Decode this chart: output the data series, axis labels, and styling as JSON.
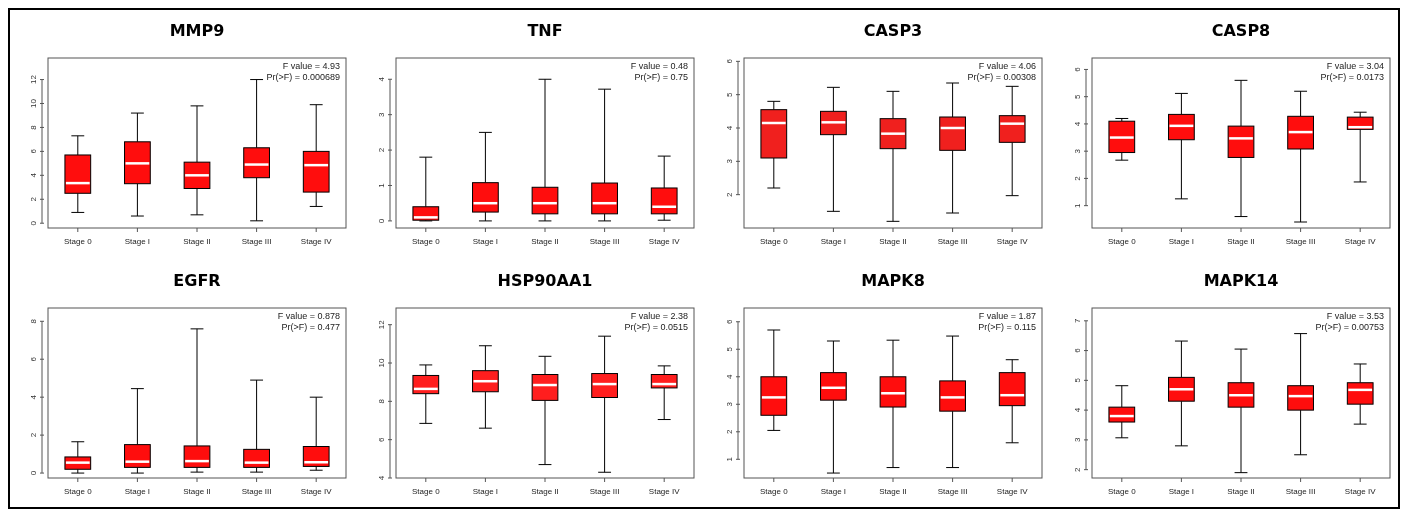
{
  "chart_data": [
    {
      "type": "box",
      "title": "MMP9",
      "categories": [
        "Stage 0",
        "Stage I",
        "Stage II",
        "Stage III",
        "Stage IV"
      ],
      "color": "#ff0d0d",
      "ylim": [
        -0.4,
        13.8
      ],
      "yticks": [
        0,
        2,
        4,
        6,
        8,
        10,
        12
      ],
      "annotations": [
        "F value = 4.93",
        "Pr(>F) = 0.000689"
      ],
      "boxes": [
        {
          "low": 0.9,
          "q1": 2.5,
          "median": 3.35,
          "q3": 5.7,
          "high": 7.3
        },
        {
          "low": 0.6,
          "q1": 3.3,
          "median": 5.0,
          "q3": 6.8,
          "high": 9.2
        },
        {
          "low": 0.7,
          "q1": 2.9,
          "median": 4.0,
          "q3": 5.1,
          "high": 9.8
        },
        {
          "low": 0.2,
          "q1": 3.8,
          "median": 4.9,
          "q3": 6.3,
          "high": 12.0
        },
        {
          "low": 1.4,
          "q1": 2.6,
          "median": 4.85,
          "q3": 6.0,
          "high": 9.9
        }
      ]
    },
    {
      "type": "box",
      "title": "TNF",
      "categories": [
        "Stage 0",
        "Stage I",
        "Stage II",
        "Stage III",
        "Stage IV"
      ],
      "color": "#ff0d0d",
      "ylim": [
        -0.2,
        4.6
      ],
      "yticks": [
        0,
        1,
        2,
        3,
        4
      ],
      "annotations": [
        "F value = 0.48",
        "Pr(>F) = 0.75"
      ],
      "boxes": [
        {
          "low": 0,
          "q1": 0.02,
          "median": 0.1,
          "q3": 0.4,
          "high": 1.8
        },
        {
          "low": 0,
          "q1": 0.25,
          "median": 0.5,
          "q3": 1.08,
          "high": 2.5
        },
        {
          "low": 0,
          "q1": 0.2,
          "median": 0.5,
          "q3": 0.95,
          "high": 4.0
        },
        {
          "low": 0,
          "q1": 0.2,
          "median": 0.5,
          "q3": 1.07,
          "high": 3.72
        },
        {
          "low": 0.02,
          "q1": 0.2,
          "median": 0.4,
          "q3": 0.93,
          "high": 1.83
        }
      ]
    },
    {
      "type": "box",
      "title": "CASP3",
      "categories": [
        "Stage 0",
        "Stage I",
        "Stage II",
        "Stage III",
        "Stage IV"
      ],
      "color": "#f0201e",
      "ylim": [
        1.0,
        6.1
      ],
      "yticks": [
        2,
        3,
        4,
        5,
        6
      ],
      "annotations": [
        "F value = 4.06",
        "Pr(>F) = 0.00308"
      ],
      "boxes": [
        {
          "low": 2.2,
          "q1": 3.1,
          "median": 4.15,
          "q3": 4.55,
          "high": 4.8
        },
        {
          "low": 1.5,
          "q1": 3.8,
          "median": 4.17,
          "q3": 4.5,
          "high": 5.22
        },
        {
          "low": 1.2,
          "q1": 3.38,
          "median": 3.83,
          "q3": 4.28,
          "high": 5.1
        },
        {
          "low": 1.45,
          "q1": 3.33,
          "median": 4.0,
          "q3": 4.33,
          "high": 5.35
        },
        {
          "low": 1.97,
          "q1": 3.57,
          "median": 4.13,
          "q3": 4.37,
          "high": 5.25
        }
      ]
    },
    {
      "type": "box",
      "title": "CASP8",
      "categories": [
        "Stage 0",
        "Stage I",
        "Stage II",
        "Stage III",
        "Stage IV"
      ],
      "color": "#ff0d0d",
      "ylim": [
        0.18,
        6.42
      ],
      "yticks": [
        1,
        2,
        3,
        4,
        5,
        6
      ],
      "annotations": [
        "F value = 3.04",
        "Pr(>F) = 0.0173"
      ],
      "boxes": [
        {
          "low": 2.67,
          "q1": 2.95,
          "median": 3.5,
          "q3": 4.1,
          "high": 4.2
        },
        {
          "low": 1.25,
          "q1": 3.42,
          "median": 3.93,
          "q3": 4.35,
          "high": 5.12
        },
        {
          "low": 0.6,
          "q1": 2.77,
          "median": 3.47,
          "q3": 3.92,
          "high": 5.6
        },
        {
          "low": 0.4,
          "q1": 3.08,
          "median": 3.7,
          "q3": 4.28,
          "high": 5.2
        },
        {
          "low": 1.87,
          "q1": 3.8,
          "median": 3.88,
          "q3": 4.25,
          "high": 4.43
        }
      ]
    },
    {
      "type": "box",
      "title": "EGFR",
      "categories": [
        "Stage 0",
        "Stage I",
        "Stage II",
        "Stage III",
        "Stage IV"
      ],
      "color": "#ff0d0d",
      "ylim": [
        -0.26,
        8.7
      ],
      "yticks": [
        0,
        2,
        4,
        6,
        8
      ],
      "annotations": [
        "F value = 0.878",
        "Pr(>F) = 0.477"
      ],
      "boxes": [
        {
          "low": 0,
          "q1": 0.2,
          "median": 0.55,
          "q3": 0.85,
          "high": 1.65
        },
        {
          "low": 0,
          "q1": 0.3,
          "median": 0.6,
          "q3": 1.5,
          "high": 4.45
        },
        {
          "low": 0.05,
          "q1": 0.3,
          "median": 0.63,
          "q3": 1.43,
          "high": 7.6
        },
        {
          "low": 0.05,
          "q1": 0.3,
          "median": 0.55,
          "q3": 1.25,
          "high": 4.9
        },
        {
          "low": 0.15,
          "q1": 0.35,
          "median": 0.57,
          "q3": 1.4,
          "high": 4.0
        }
      ]
    },
    {
      "type": "box",
      "title": "HSP90AA1",
      "categories": [
        "Stage 0",
        "Stage I",
        "Stage II",
        "Stage III",
        "Stage IV"
      ],
      "color": "#ff1e1e",
      "ylim": [
        4.0,
        12.87
      ],
      "yticks": [
        4,
        6,
        8,
        10,
        12
      ],
      "annotations": [
        "F value = 2.38",
        "Pr(>F) = 0.0515"
      ],
      "boxes": [
        {
          "low": 6.85,
          "q1": 8.4,
          "median": 8.65,
          "q3": 9.35,
          "high": 9.9
        },
        {
          "low": 6.6,
          "q1": 8.5,
          "median": 9.05,
          "q3": 9.6,
          "high": 10.9
        },
        {
          "low": 4.7,
          "q1": 8.05,
          "median": 8.85,
          "q3": 9.4,
          "high": 10.35
        },
        {
          "low": 4.3,
          "q1": 8.2,
          "median": 8.9,
          "q3": 9.45,
          "high": 11.4
        },
        {
          "low": 7.05,
          "q1": 8.7,
          "median": 8.9,
          "q3": 9.4,
          "high": 9.85
        }
      ]
    },
    {
      "type": "box",
      "title": "MAPK8",
      "categories": [
        "Stage 0",
        "Stage I",
        "Stage II",
        "Stage III",
        "Stage IV"
      ],
      "color": "#ff0d0d",
      "ylim": [
        0.32,
        6.5
      ],
      "yticks": [
        1,
        2,
        3,
        4,
        5,
        6
      ],
      "annotations": [
        "F value = 1.87",
        "Pr(>F) = 0.115"
      ],
      "boxes": [
        {
          "low": 2.05,
          "q1": 2.6,
          "median": 3.25,
          "q3": 4.0,
          "high": 5.7
        },
        {
          "low": 0.5,
          "q1": 3.15,
          "median": 3.6,
          "q3": 4.15,
          "high": 5.3
        },
        {
          "low": 0.7,
          "q1": 2.9,
          "median": 3.4,
          "q3": 4.0,
          "high": 5.33
        },
        {
          "low": 0.7,
          "q1": 2.75,
          "median": 3.25,
          "q3": 3.85,
          "high": 5.48
        },
        {
          "low": 1.6,
          "q1": 2.95,
          "median": 3.33,
          "q3": 4.15,
          "high": 4.62
        }
      ]
    },
    {
      "type": "box",
      "title": "MAPK14",
      "categories": [
        "Stage 0",
        "Stage I",
        "Stage II",
        "Stage III",
        "Stage IV"
      ],
      "color": "#ff0d0d",
      "ylim": [
        1.72,
        7.43
      ],
      "yticks": [
        2,
        3,
        4,
        5,
        6,
        7
      ],
      "annotations": [
        "F value = 3.53",
        "Pr(>F) = 0.00753"
      ],
      "boxes": [
        {
          "low": 3.07,
          "q1": 3.6,
          "median": 3.8,
          "q3": 4.1,
          "high": 4.82
        },
        {
          "low": 2.8,
          "q1": 4.3,
          "median": 4.7,
          "q3": 5.1,
          "high": 6.32
        },
        {
          "low": 1.9,
          "q1": 4.1,
          "median": 4.5,
          "q3": 4.92,
          "high": 6.05
        },
        {
          "low": 2.5,
          "q1": 4.0,
          "median": 4.47,
          "q3": 4.82,
          "high": 6.57
        },
        {
          "low": 3.53,
          "q1": 4.2,
          "median": 4.68,
          "q3": 4.92,
          "high": 5.55
        }
      ]
    }
  ]
}
